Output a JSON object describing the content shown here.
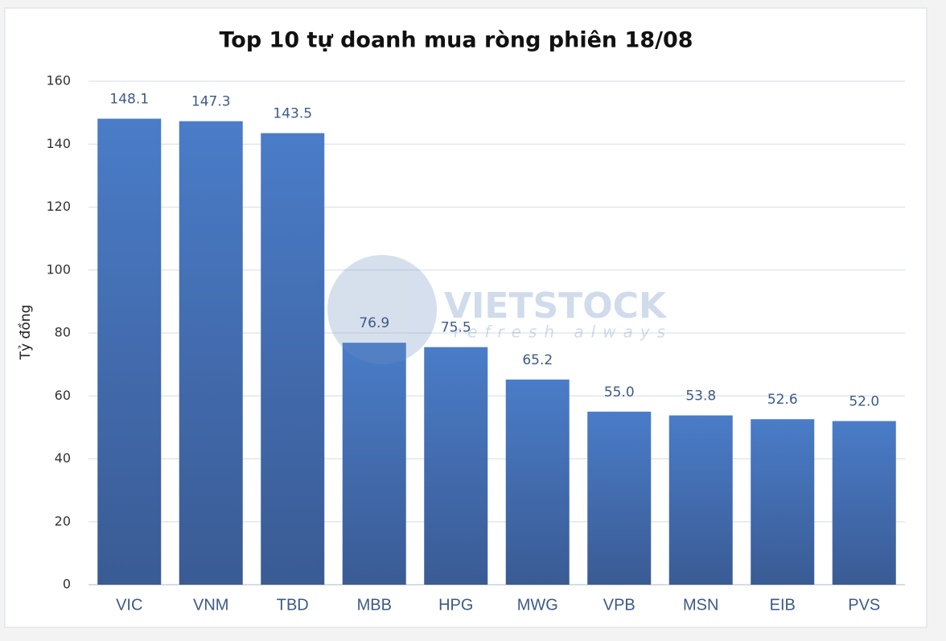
{
  "chart_data": {
    "type": "bar",
    "title": "Top 10 tự doanh mua ròng phiên 18/08",
    "y_label": "Tỷ đồng",
    "watermark": "VIETSTOCK",
    "watermark_tagline": "refresh always",
    "categories": [
      "VIC",
      "VNM",
      "TBD",
      "MBB",
      "HPG",
      "MWG",
      "VPB",
      "MSN",
      "EIB",
      "PVS"
    ],
    "values": [
      148.1,
      147.3,
      143.5,
      76.9,
      75.5,
      65.2,
      55.0,
      53.8,
      52.6,
      52.0
    ],
    "value_labels": [
      "148.1",
      "147.3",
      "143.5",
      "76.9",
      "75.5",
      "65.2",
      "55.0",
      "53.8",
      "52.6",
      "52.0"
    ],
    "color": "#4a7cc8",
    "ylim": [
      0,
      160
    ],
    "yticks": [
      0,
      20,
      40,
      60,
      80,
      100,
      120,
      140,
      160
    ],
    "grid": true
  }
}
